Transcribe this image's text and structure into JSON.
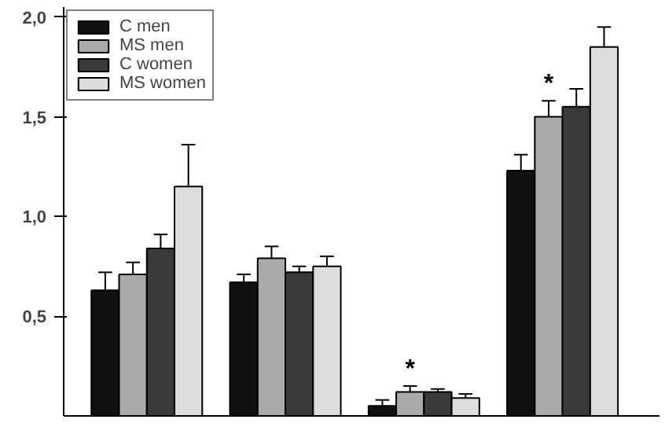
{
  "chart_data": {
    "type": "bar",
    "categories": [
      null,
      null,
      null,
      null
    ],
    "series": [
      {
        "name": "C men",
        "color": "#111111",
        "values": [
          0.63,
          0.67,
          0.05,
          1.23
        ],
        "errors": [
          [
            0.63,
            0.72
          ],
          [
            0.67,
            0.71
          ],
          [
            0.05,
            0.08
          ],
          [
            1.23,
            1.31
          ]
        ]
      },
      {
        "name": "MS men",
        "color": "#aaaaaa",
        "values": [
          0.71,
          0.79,
          0.12,
          1.5
        ],
        "errors": [
          [
            0.71,
            0.77
          ],
          [
            0.79,
            0.85
          ],
          [
            0.12,
            0.15
          ],
          [
            1.5,
            1.58
          ]
        ],
        "value_labels": [
          null,
          null,
          "*",
          "*"
        ]
      },
      {
        "name": "C women",
        "color": "#3a3a3a",
        "values": [
          0.84,
          0.72,
          0.12,
          1.55
        ],
        "errors": [
          [
            0.84,
            0.91
          ],
          [
            0.72,
            0.75
          ],
          [
            0.12,
            0.135
          ],
          [
            1.55,
            1.64
          ]
        ]
      },
      {
        "name": "MS women",
        "color": "#dddddd",
        "values": [
          1.15,
          0.75,
          0.09,
          1.85
        ],
        "errors": [
          [
            1.15,
            1.36
          ],
          [
            0.75,
            0.8
          ],
          [
            0.09,
            0.11
          ],
          [
            1.85,
            1.95
          ]
        ]
      }
    ],
    "ylim": [
      0,
      2.05
    ],
    "yticks": [
      {
        "value": 0.5,
        "label": "0,5"
      },
      {
        "value": 1.0,
        "label": "1,0"
      },
      {
        "value": 1.5,
        "label": "1,5"
      },
      {
        "value": 2.0,
        "label": "2,0"
      }
    ],
    "grid": false,
    "legend": "top left"
  }
}
